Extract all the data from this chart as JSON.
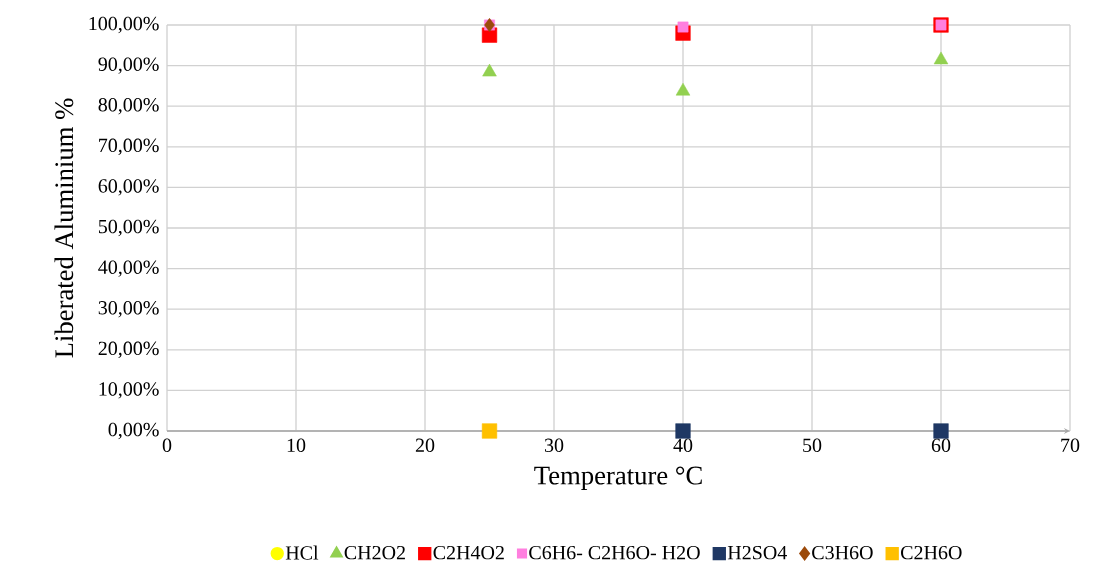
{
  "chart_data": {
    "type": "scatter",
    "xlabel": "Temperature °C",
    "ylabel": "Liberated Aluminium %",
    "x": [
      25,
      40,
      60
    ],
    "series": [
      {
        "name": "HCl",
        "color": "#ffff00",
        "marker": "circle",
        "values": [
          null,
          null,
          null
        ]
      },
      {
        "name": "CH2O2",
        "color": "#92d050",
        "marker": "triangle",
        "values": [
          88.4,
          83.7,
          91.4
        ]
      },
      {
        "name": "C2H4O2",
        "color": "#ff0000",
        "marker": "square",
        "values": [
          97.5,
          98,
          100
        ]
      },
      {
        "name": "C6H6- C2H6O- H2O",
        "color": "#ff7fdf",
        "marker": "square",
        "values": [
          100,
          99.5,
          100
        ]
      },
      {
        "name": "H2SO4",
        "color": "#1f3864",
        "marker": "square",
        "values": [
          null,
          0,
          0
        ]
      },
      {
        "name": "C3H6O",
        "color": "#9c4a0b",
        "marker": "diamond",
        "values": [
          100,
          null,
          null
        ]
      },
      {
        "name": "C2H6O",
        "color": "#ffc000",
        "marker": "square",
        "values": [
          0,
          null,
          null
        ]
      }
    ],
    "xlim": [
      0,
      70
    ],
    "xticks": [
      0,
      10,
      20,
      30,
      40,
      50,
      60,
      70
    ],
    "ylim": [
      0,
      100
    ],
    "yticks": [
      {
        "value": 0,
        "label": "0,00%"
      },
      {
        "value": 10,
        "label": "10,00%"
      },
      {
        "value": 20,
        "label": "20,00%"
      },
      {
        "value": 30,
        "label": "30,00%"
      },
      {
        "value": 40,
        "label": "40,00%"
      },
      {
        "value": 50,
        "label": "50,00%"
      },
      {
        "value": 60,
        "label": "60,00%"
      },
      {
        "value": 70,
        "label": "70,00%"
      },
      {
        "value": 80,
        "label": "80,00%"
      },
      {
        "value": 90,
        "label": "90,00%"
      },
      {
        "value": 100,
        "label": "100,00%"
      }
    ],
    "grid": true,
    "legend": "bottom"
  }
}
